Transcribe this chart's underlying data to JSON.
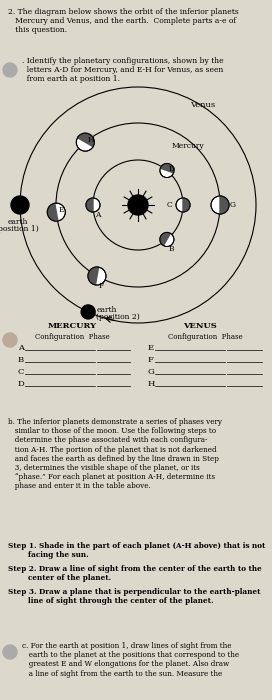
{
  "bg_color": "#ddd8cc",
  "title_text": "2. The diagram below shows the orbit of the inferior planets\n   Mercury and Venus, and the earth.  Complete parts a-e of\n   this question.",
  "bullet_a_text": ". Identify the planetary configurations, shown by the\n  letters A-D for Mercury, and E-H for Venus, as seen\n  from earth at position 1.",
  "footer_mercury": "MERCURY",
  "footer_venus": "VENUS",
  "footer_config": "Configuration  Phase",
  "rows_mercury": [
    "A",
    "B",
    "C",
    "D"
  ],
  "rows_venus": [
    "E",
    "F",
    "G",
    "H"
  ],
  "section_b_text": "b. The inferior planets demonstrate a series of phases very\n   similar to those of the moon. Use the following steps to\n   determine the phase associated with each configura-\n   tion A-H. The portion of the planet that is not darkened\n   and faces the earth as defined by the line drawn in Step\n   3, determines the visible shape of the planet, or its\n   “phase.” For each planet at position A-H, determine its\n   phase and enter it in the table above.",
  "step1_text": "Step 1. Shade in the part of each planet (A-H above) that is not\n        facing the sun.",
  "step2_text": "Step 2. Draw a line of sight from the center of the earth to the\n        center of the planet.",
  "step3_text": "Step 3. Draw a plane that is perpendicular to the earth-planet\n        line of sight through the center of the planet.",
  "section_c_text": "c. For the earth at position 1, draw lines of sight from the\n   earth to the planet at the positions that correspond to the\n   greatest E and W elongations for the planet. Also draw\n   a line of sight from the earth to the sun. Measure the"
}
